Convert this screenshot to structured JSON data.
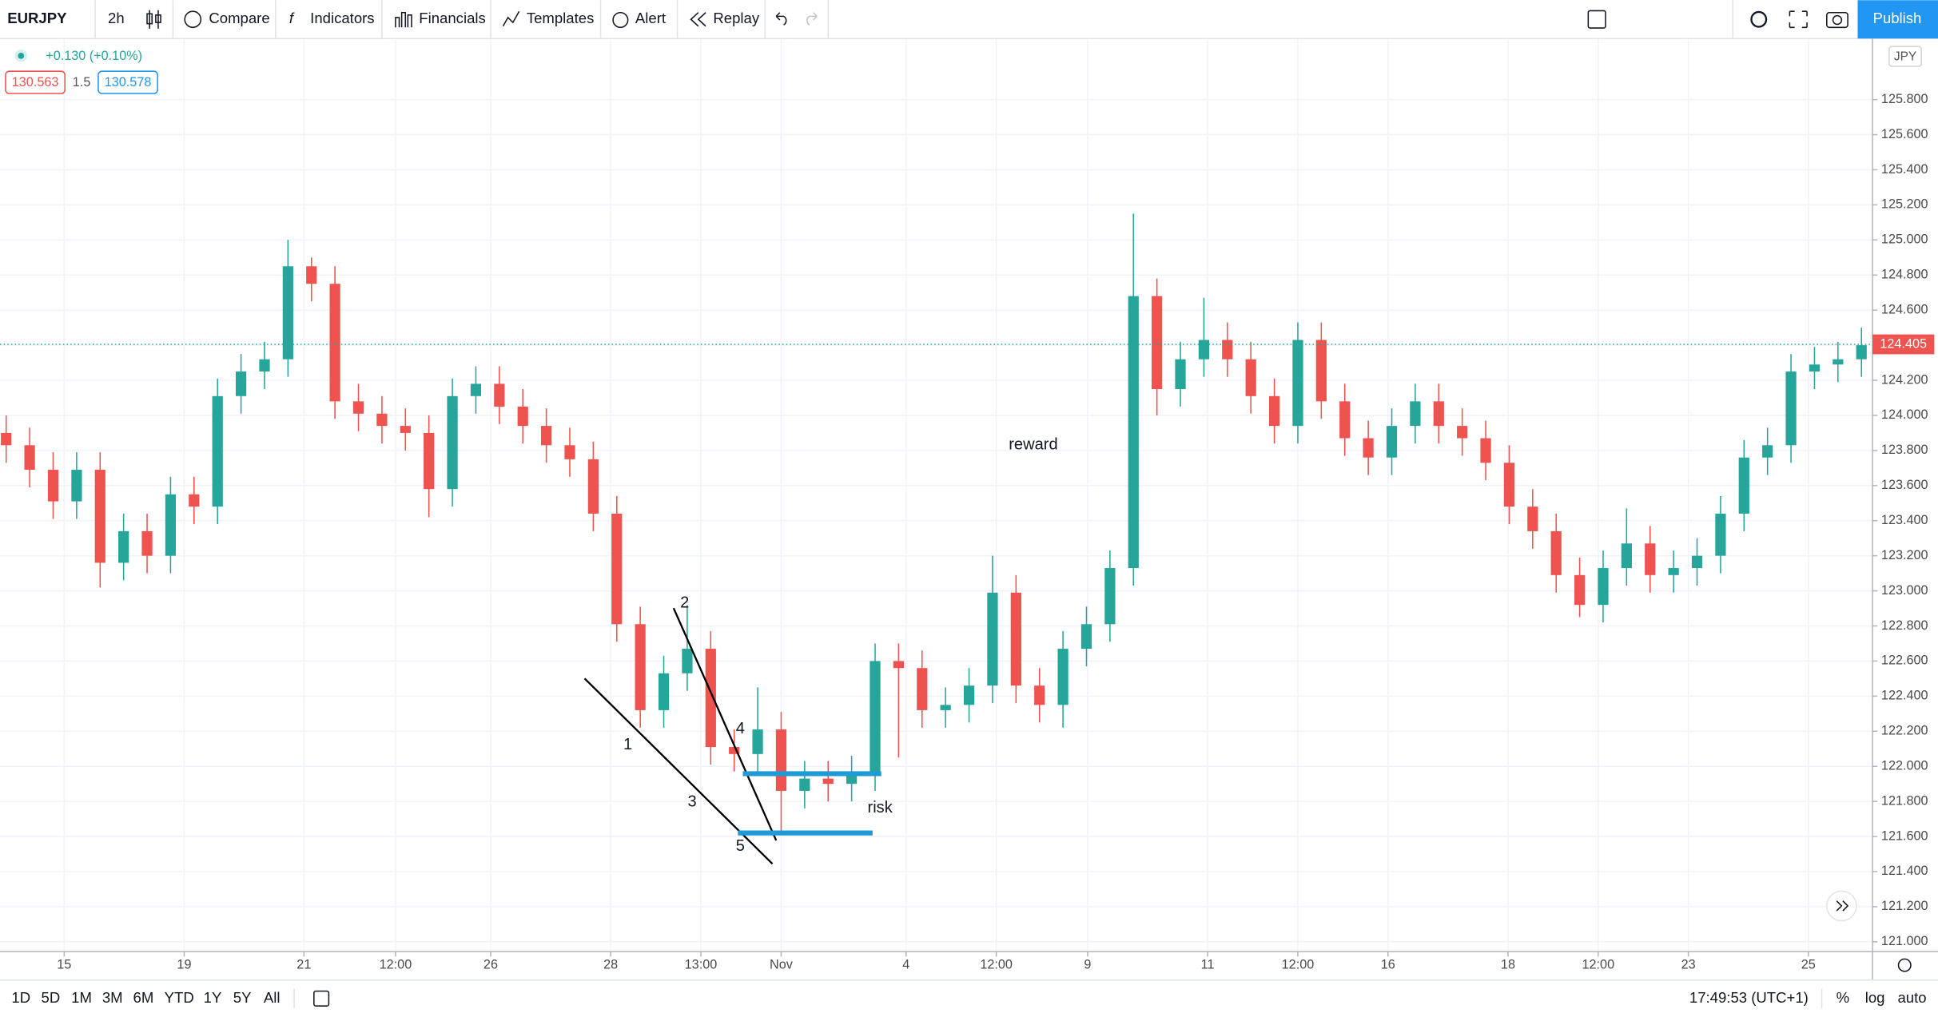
{
  "toolbar": {
    "symbol": "EURJPY",
    "interval": "2h",
    "buttons": [
      "Compare",
      "Indicators",
      "Financials",
      "Templates",
      "Alert",
      "Replay"
    ],
    "publish": "Publish"
  },
  "legend": {
    "change": "+0.130 (+0.10%)",
    "bid": "130.563",
    "spread": "1.5",
    "ask": "130.578"
  },
  "bottom_bar": {
    "ranges": [
      "1D",
      "5D",
      "1M",
      "3M",
      "6M",
      "YTD",
      "1Y",
      "5Y",
      "All"
    ],
    "clock": "17:49:53 (UTC+1)",
    "options": [
      "%",
      "log",
      "auto"
    ]
  },
  "chart_data": {
    "type": "candlestick",
    "currency": "JPY",
    "up_color": "#26a69a",
    "down_color": "#ef5350",
    "open": [
      123.9,
      123.83,
      123.69,
      123.51,
      123.69,
      123.16,
      123.34,
      123.2,
      123.55,
      123.48,
      124.11,
      124.25,
      124.32,
      124.85,
      124.75,
      124.08,
      124.01,
      123.94,
      123.9,
      123.58,
      124.11,
      124.18,
      124.05,
      123.94,
      123.83,
      123.75,
      123.44,
      122.81,
      122.32,
      122.53,
      122.67,
      122.11,
      122.07,
      122.21,
      121.86,
      121.93,
      121.9,
      121.96,
      122.6,
      122.56,
      122.32,
      122.35,
      122.46,
      122.99,
      122.46,
      122.35,
      122.67,
      122.81,
      123.13,
      124.68,
      124.15,
      124.32,
      124.43,
      124.32,
      124.11,
      123.94,
      124.43,
      124.08,
      123.87,
      123.76,
      123.94,
      124.08,
      123.94,
      123.87,
      123.73,
      123.48,
      123.34,
      123.09,
      122.92,
      123.13,
      123.27,
      123.09,
      123.13,
      123.2,
      123.44,
      123.76,
      123.83,
      124.25,
      124.29,
      124.32
    ],
    "high": [
      124.0,
      123.93,
      123.79,
      123.79,
      123.79,
      123.44,
      123.44,
      123.65,
      123.65,
      124.21,
      124.35,
      124.42,
      125.0,
      124.9,
      124.85,
      124.18,
      124.11,
      124.04,
      124.0,
      124.21,
      124.28,
      124.28,
      124.15,
      124.04,
      123.93,
      123.85,
      123.54,
      122.91,
      122.63,
      122.92,
      122.77,
      122.21,
      122.45,
      122.31,
      122.03,
      122.03,
      122.06,
      122.7,
      122.7,
      122.66,
      122.45,
      122.56,
      123.2,
      123.09,
      122.56,
      122.77,
      122.91,
      123.23,
      125.15,
      124.78,
      124.42,
      124.67,
      124.53,
      124.42,
      124.21,
      124.53,
      124.53,
      124.18,
      123.97,
      124.04,
      124.18,
      124.18,
      124.04,
      123.97,
      123.83,
      123.58,
      123.44,
      123.19,
      123.23,
      123.47,
      123.37,
      123.23,
      123.3,
      123.54,
      123.86,
      123.93,
      124.35,
      124.39,
      124.42,
      124.5
    ],
    "low": [
      123.73,
      123.59,
      123.41,
      123.41,
      123.02,
      123.06,
      123.1,
      123.1,
      123.38,
      123.38,
      124.01,
      124.15,
      124.22,
      124.65,
      123.98,
      123.91,
      123.84,
      123.8,
      123.42,
      123.48,
      124.01,
      123.95,
      123.84,
      123.73,
      123.65,
      123.34,
      122.71,
      122.22,
      122.22,
      122.43,
      122.01,
      121.97,
      121.97,
      121.62,
      121.76,
      121.8,
      121.8,
      121.86,
      122.05,
      122.22,
      122.22,
      122.25,
      122.36,
      122.36,
      122.25,
      122.22,
      122.57,
      122.71,
      123.03,
      124.0,
      124.05,
      124.22,
      124.22,
      124.01,
      123.84,
      123.84,
      123.98,
      123.77,
      123.66,
      123.66,
      123.84,
      123.84,
      123.77,
      123.63,
      123.38,
      123.24,
      122.99,
      122.85,
      122.82,
      123.03,
      122.99,
      122.99,
      123.03,
      123.1,
      123.34,
      123.66,
      123.73,
      124.15,
      124.19,
      124.22
    ],
    "close": [
      123.83,
      123.69,
      123.51,
      123.69,
      123.16,
      123.34,
      123.2,
      123.55,
      123.48,
      124.11,
      124.25,
      124.32,
      124.85,
      124.75,
      124.08,
      124.01,
      123.94,
      123.9,
      123.58,
      124.11,
      124.18,
      124.05,
      123.94,
      123.83,
      123.75,
      123.44,
      122.81,
      122.32,
      122.53,
      122.67,
      122.11,
      122.07,
      122.21,
      121.86,
      121.93,
      121.9,
      121.96,
      122.6,
      122.56,
      122.32,
      122.35,
      122.46,
      122.99,
      122.46,
      122.35,
      122.67,
      122.81,
      123.13,
      124.68,
      124.15,
      124.32,
      124.43,
      124.32,
      124.11,
      123.94,
      124.43,
      124.08,
      123.87,
      123.76,
      123.94,
      124.08,
      123.94,
      123.87,
      123.73,
      123.48,
      123.34,
      123.09,
      122.92,
      123.13,
      123.27,
      123.09,
      123.13,
      123.2,
      123.44,
      123.76,
      123.83,
      124.25,
      124.29,
      124.32,
      124.4
    ],
    "last_price": 124.405,
    "xlim": [
      -0.263,
      79.47
    ],
    "xticks": [
      {
        "value": 2.47,
        "label": "15"
      },
      {
        "value": 7.58,
        "label": "19"
      },
      {
        "value": 12.68,
        "label": "21"
      },
      {
        "value": 16.58,
        "label": "12:00"
      },
      {
        "value": 20.63,
        "label": "26"
      },
      {
        "value": 25.74,
        "label": "28"
      },
      {
        "value": 29.58,
        "label": "13:00"
      },
      {
        "value": 33.0,
        "label": "Nov"
      },
      {
        "value": 38.32,
        "label": "4"
      },
      {
        "value": 42.16,
        "label": "12:00"
      },
      {
        "value": 46.05,
        "label": "9"
      },
      {
        "value": 51.16,
        "label": "11"
      },
      {
        "value": 55.0,
        "label": "12:00"
      },
      {
        "value": 58.84,
        "label": "16"
      },
      {
        "value": 63.95,
        "label": "18"
      },
      {
        "value": 67.79,
        "label": "12:00"
      },
      {
        "value": 71.63,
        "label": "23"
      },
      {
        "value": 76.74,
        "label": "25"
      }
    ],
    "ylim": [
      120.944,
      126.148
    ],
    "yticks": [
      {
        "value": 121.0,
        "label": "121.000"
      },
      {
        "value": 121.2,
        "label": "121.200"
      },
      {
        "value": 121.4,
        "label": "121.400"
      },
      {
        "value": 121.6,
        "label": "121.600"
      },
      {
        "value": 121.8,
        "label": "121.800"
      },
      {
        "value": 122.0,
        "label": "122.000"
      },
      {
        "value": 122.2,
        "label": "122.200"
      },
      {
        "value": 122.4,
        "label": "122.400"
      },
      {
        "value": 122.6,
        "label": "122.600"
      },
      {
        "value": 122.8,
        "label": "122.800"
      },
      {
        "value": 123.0,
        "label": "123.000"
      },
      {
        "value": 123.2,
        "label": "123.200"
      },
      {
        "value": 123.4,
        "label": "123.400"
      },
      {
        "value": 123.6,
        "label": "123.600"
      },
      {
        "value": 123.8,
        "label": "123.800"
      },
      {
        "value": 124.0,
        "label": "124.000"
      },
      {
        "value": 124.2,
        "label": "124.200"
      },
      {
        "value": 124.4,
        "label": "124.400"
      },
      {
        "value": 124.6,
        "label": "124.600"
      },
      {
        "value": 124.8,
        "label": "124.800"
      },
      {
        "value": 125.0,
        "label": "125.000"
      },
      {
        "value": 125.2,
        "label": "125.200"
      },
      {
        "value": 125.4,
        "label": "125.400"
      },
      {
        "value": 125.6,
        "label": "125.600"
      },
      {
        "value": 125.8,
        "label": "125.800"
      }
    ],
    "grid": true,
    "annotations": [
      "1",
      "2",
      "3",
      "4",
      "5",
      "reward",
      "risk"
    ]
  }
}
